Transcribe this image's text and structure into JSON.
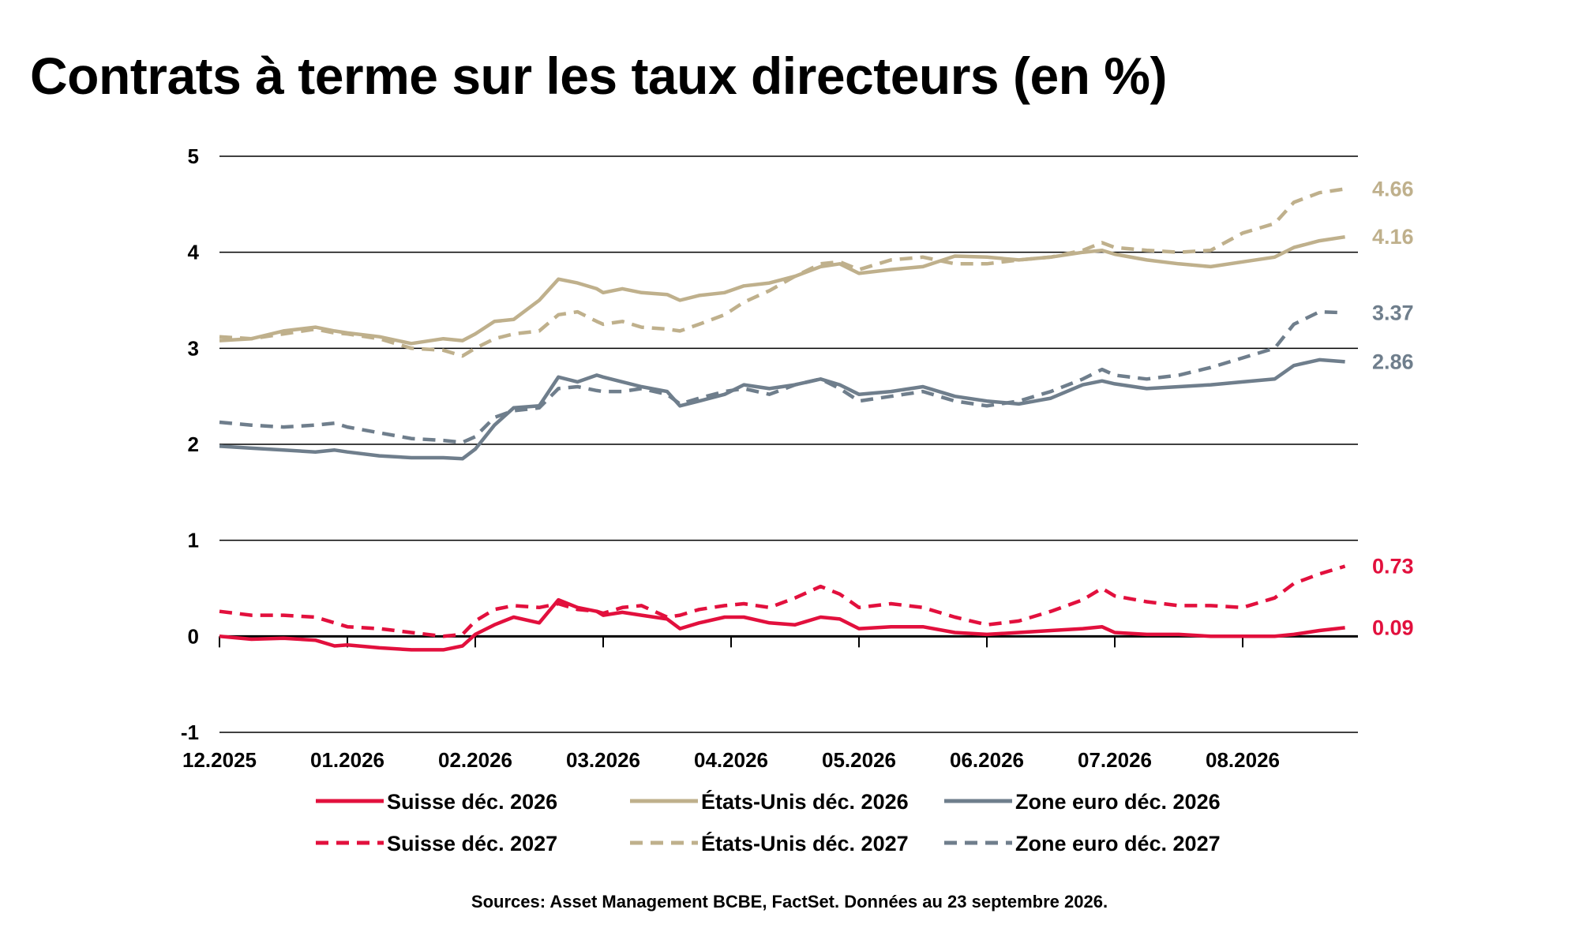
{
  "title": "Contrats à terme sur les taux directeurs (en %)",
  "source_note": "Sources: Asset Management BCBE, FactSet. Données au 23 septembre 2026.",
  "colors": {
    "suisse": "#E2103D",
    "etats_unis": "#BFB08C",
    "zone_euro": "#6F7E8C",
    "grid": "#000000"
  },
  "chart_data": {
    "type": "line",
    "title": "Contrats à terme sur les taux directeurs (en %)",
    "xlabel": "",
    "ylabel": "",
    "ylim": [
      -1,
      5
    ],
    "yticks": [
      -1,
      0,
      1,
      2,
      3,
      4,
      5
    ],
    "grid": "horizontal",
    "legend_position": "bottom",
    "x_start": "12.2025",
    "x_end": "23.09.2026",
    "x_ticks": [
      {
        "label": "12.2025",
        "t": 0
      },
      {
        "label": "01.2026",
        "t": 1
      },
      {
        "label": "02.2026",
        "t": 2
      },
      {
        "label": "03.2026",
        "t": 3
      },
      {
        "label": "04.2026",
        "t": 4
      },
      {
        "label": "05.2026",
        "t": 5
      },
      {
        "label": "06.2026",
        "t": 6
      },
      {
        "label": "07.2026",
        "t": 7
      },
      {
        "label": "08.2026",
        "t": 8
      }
    ],
    "series": [
      {
        "name": "Suisse déc. 2026",
        "color": "#E2103D",
        "dash": "solid",
        "end_label": "0.09",
        "points": [
          [
            0,
            0
          ],
          [
            0.25,
            -0.03
          ],
          [
            0.5,
            -0.02
          ],
          [
            0.75,
            -0.04
          ],
          [
            0.9,
            -0.1
          ],
          [
            1.0,
            -0.09
          ],
          [
            1.25,
            -0.12
          ],
          [
            1.5,
            -0.14
          ],
          [
            1.75,
            -0.14
          ],
          [
            1.9,
            -0.1
          ],
          [
            2.0,
            0.02
          ],
          [
            2.15,
            0.12
          ],
          [
            2.3,
            0.2
          ],
          [
            2.5,
            0.14
          ],
          [
            2.65,
            0.38
          ],
          [
            2.8,
            0.3
          ],
          [
            2.95,
            0.26
          ],
          [
            3.0,
            0.22
          ],
          [
            3.15,
            0.25
          ],
          [
            3.3,
            0.22
          ],
          [
            3.5,
            0.18
          ],
          [
            3.6,
            0.08
          ],
          [
            3.75,
            0.14
          ],
          [
            3.95,
            0.2
          ],
          [
            4.1,
            0.2
          ],
          [
            4.3,
            0.14
          ],
          [
            4.5,
            0.12
          ],
          [
            4.7,
            0.2
          ],
          [
            4.85,
            0.18
          ],
          [
            5.0,
            0.08
          ],
          [
            5.25,
            0.1
          ],
          [
            5.5,
            0.1
          ],
          [
            5.75,
            0.04
          ],
          [
            6.0,
            0.02
          ],
          [
            6.25,
            0.04
          ],
          [
            6.5,
            0.06
          ],
          [
            6.75,
            0.08
          ],
          [
            6.9,
            0.1
          ],
          [
            7.0,
            0.04
          ],
          [
            7.25,
            0.02
          ],
          [
            7.5,
            0.02
          ],
          [
            7.75,
            0.0
          ],
          [
            8.0,
            0.0
          ],
          [
            8.25,
            0.0
          ],
          [
            8.4,
            0.02
          ],
          [
            8.6,
            0.06
          ],
          [
            8.8,
            0.09
          ]
        ]
      },
      {
        "name": "Suisse déc. 2027",
        "color": "#E2103D",
        "dash": "dashed",
        "end_label": "0.73",
        "points": [
          [
            0,
            0.26
          ],
          [
            0.25,
            0.22
          ],
          [
            0.5,
            0.22
          ],
          [
            0.75,
            0.2
          ],
          [
            0.9,
            0.14
          ],
          [
            1.0,
            0.1
          ],
          [
            1.25,
            0.08
          ],
          [
            1.5,
            0.04
          ],
          [
            1.75,
            0.0
          ],
          [
            1.9,
            0.02
          ],
          [
            2.0,
            0.16
          ],
          [
            2.15,
            0.28
          ],
          [
            2.3,
            0.32
          ],
          [
            2.5,
            0.3
          ],
          [
            2.65,
            0.34
          ],
          [
            2.8,
            0.28
          ],
          [
            2.95,
            0.26
          ],
          [
            3.0,
            0.24
          ],
          [
            3.15,
            0.3
          ],
          [
            3.3,
            0.32
          ],
          [
            3.5,
            0.2
          ],
          [
            3.6,
            0.22
          ],
          [
            3.75,
            0.28
          ],
          [
            3.95,
            0.32
          ],
          [
            4.1,
            0.34
          ],
          [
            4.3,
            0.3
          ],
          [
            4.5,
            0.4
          ],
          [
            4.7,
            0.52
          ],
          [
            4.85,
            0.44
          ],
          [
            5.0,
            0.3
          ],
          [
            5.25,
            0.34
          ],
          [
            5.5,
            0.3
          ],
          [
            5.75,
            0.2
          ],
          [
            6.0,
            0.12
          ],
          [
            6.25,
            0.16
          ],
          [
            6.5,
            0.26
          ],
          [
            6.75,
            0.38
          ],
          [
            6.9,
            0.5
          ],
          [
            7.0,
            0.42
          ],
          [
            7.25,
            0.36
          ],
          [
            7.5,
            0.32
          ],
          [
            7.75,
            0.32
          ],
          [
            8.0,
            0.3
          ],
          [
            8.25,
            0.4
          ],
          [
            8.4,
            0.55
          ],
          [
            8.6,
            0.65
          ],
          [
            8.8,
            0.73
          ]
        ]
      },
      {
        "name": "États-Unis déc. 2026",
        "color": "#BFB08C",
        "dash": "solid",
        "end_label": "4.16",
        "points": [
          [
            0,
            3.08
          ],
          [
            0.25,
            3.1
          ],
          [
            0.5,
            3.18
          ],
          [
            0.75,
            3.22
          ],
          [
            0.9,
            3.18
          ],
          [
            1.0,
            3.16
          ],
          [
            1.25,
            3.12
          ],
          [
            1.5,
            3.05
          ],
          [
            1.75,
            3.1
          ],
          [
            1.9,
            3.08
          ],
          [
            2.0,
            3.15
          ],
          [
            2.15,
            3.28
          ],
          [
            2.3,
            3.3
          ],
          [
            2.5,
            3.5
          ],
          [
            2.65,
            3.72
          ],
          [
            2.8,
            3.68
          ],
          [
            2.95,
            3.62
          ],
          [
            3.0,
            3.58
          ],
          [
            3.15,
            3.62
          ],
          [
            3.3,
            3.58
          ],
          [
            3.5,
            3.56
          ],
          [
            3.6,
            3.5
          ],
          [
            3.75,
            3.55
          ],
          [
            3.95,
            3.58
          ],
          [
            4.1,
            3.65
          ],
          [
            4.3,
            3.68
          ],
          [
            4.5,
            3.75
          ],
          [
            4.7,
            3.85
          ],
          [
            4.85,
            3.88
          ],
          [
            5.0,
            3.78
          ],
          [
            5.25,
            3.82
          ],
          [
            5.5,
            3.85
          ],
          [
            5.75,
            3.96
          ],
          [
            6.0,
            3.95
          ],
          [
            6.25,
            3.92
          ],
          [
            6.5,
            3.95
          ],
          [
            6.75,
            4.0
          ],
          [
            6.9,
            4.02
          ],
          [
            7.0,
            3.98
          ],
          [
            7.25,
            3.92
          ],
          [
            7.5,
            3.88
          ],
          [
            7.75,
            3.85
          ],
          [
            8.0,
            3.9
          ],
          [
            8.25,
            3.95
          ],
          [
            8.4,
            4.05
          ],
          [
            8.6,
            4.12
          ],
          [
            8.8,
            4.16
          ]
        ]
      },
      {
        "name": "États-Unis déc. 2027",
        "color": "#BFB08C",
        "dash": "dashed",
        "end_label": "4.66",
        "points": [
          [
            0,
            3.12
          ],
          [
            0.25,
            3.1
          ],
          [
            0.5,
            3.15
          ],
          [
            0.75,
            3.2
          ],
          [
            0.9,
            3.16
          ],
          [
            1.0,
            3.15
          ],
          [
            1.25,
            3.1
          ],
          [
            1.5,
            3.0
          ],
          [
            1.75,
            2.98
          ],
          [
            1.9,
            2.92
          ],
          [
            2.0,
            3.0
          ],
          [
            2.15,
            3.1
          ],
          [
            2.3,
            3.15
          ],
          [
            2.5,
            3.18
          ],
          [
            2.65,
            3.35
          ],
          [
            2.8,
            3.38
          ],
          [
            2.95,
            3.28
          ],
          [
            3.0,
            3.25
          ],
          [
            3.15,
            3.28
          ],
          [
            3.3,
            3.22
          ],
          [
            3.5,
            3.2
          ],
          [
            3.6,
            3.18
          ],
          [
            3.75,
            3.25
          ],
          [
            3.95,
            3.35
          ],
          [
            4.1,
            3.48
          ],
          [
            4.3,
            3.6
          ],
          [
            4.5,
            3.75
          ],
          [
            4.7,
            3.88
          ],
          [
            4.85,
            3.9
          ],
          [
            5.0,
            3.82
          ],
          [
            5.25,
            3.92
          ],
          [
            5.5,
            3.95
          ],
          [
            5.75,
            3.88
          ],
          [
            6.0,
            3.88
          ],
          [
            6.25,
            3.92
          ],
          [
            6.5,
            3.95
          ],
          [
            6.75,
            4.02
          ],
          [
            6.9,
            4.1
          ],
          [
            7.0,
            4.05
          ],
          [
            7.25,
            4.02
          ],
          [
            7.5,
            4.0
          ],
          [
            7.75,
            4.02
          ],
          [
            8.0,
            4.2
          ],
          [
            8.25,
            4.3
          ],
          [
            8.4,
            4.52
          ],
          [
            8.6,
            4.62
          ],
          [
            8.8,
            4.66
          ]
        ]
      },
      {
        "name": "Zone euro déc. 2026",
        "color": "#6F7E8C",
        "dash": "solid",
        "end_label": "2.86",
        "points": [
          [
            0,
            1.98
          ],
          [
            0.25,
            1.96
          ],
          [
            0.5,
            1.94
          ],
          [
            0.75,
            1.92
          ],
          [
            0.9,
            1.94
          ],
          [
            1.0,
            1.92
          ],
          [
            1.25,
            1.88
          ],
          [
            1.5,
            1.86
          ],
          [
            1.75,
            1.86
          ],
          [
            1.9,
            1.85
          ],
          [
            2.0,
            1.95
          ],
          [
            2.15,
            2.2
          ],
          [
            2.3,
            2.38
          ],
          [
            2.5,
            2.4
          ],
          [
            2.65,
            2.7
          ],
          [
            2.8,
            2.65
          ],
          [
            2.95,
            2.72
          ],
          [
            3.0,
            2.7
          ],
          [
            3.15,
            2.65
          ],
          [
            3.3,
            2.6
          ],
          [
            3.5,
            2.55
          ],
          [
            3.6,
            2.4
          ],
          [
            3.75,
            2.45
          ],
          [
            3.95,
            2.52
          ],
          [
            4.1,
            2.62
          ],
          [
            4.3,
            2.58
          ],
          [
            4.5,
            2.62
          ],
          [
            4.7,
            2.68
          ],
          [
            4.85,
            2.62
          ],
          [
            5.0,
            2.52
          ],
          [
            5.25,
            2.55
          ],
          [
            5.5,
            2.6
          ],
          [
            5.75,
            2.5
          ],
          [
            6.0,
            2.45
          ],
          [
            6.25,
            2.42
          ],
          [
            6.5,
            2.48
          ],
          [
            6.75,
            2.62
          ],
          [
            6.9,
            2.66
          ],
          [
            7.0,
            2.63
          ],
          [
            7.25,
            2.58
          ],
          [
            7.5,
            2.6
          ],
          [
            7.75,
            2.62
          ],
          [
            8.0,
            2.65
          ],
          [
            8.25,
            2.68
          ],
          [
            8.4,
            2.82
          ],
          [
            8.6,
            2.88
          ],
          [
            8.8,
            2.86
          ]
        ]
      },
      {
        "name": "Zone euro déc. 2027",
        "color": "#6F7E8C",
        "dash": "dashed",
        "end_label": "3.37",
        "points": [
          [
            0,
            2.23
          ],
          [
            0.25,
            2.2
          ],
          [
            0.5,
            2.18
          ],
          [
            0.75,
            2.2
          ],
          [
            0.9,
            2.22
          ],
          [
            1.0,
            2.18
          ],
          [
            1.25,
            2.12
          ],
          [
            1.5,
            2.06
          ],
          [
            1.75,
            2.04
          ],
          [
            1.9,
            2.02
          ],
          [
            2.0,
            2.08
          ],
          [
            2.15,
            2.28
          ],
          [
            2.3,
            2.35
          ],
          [
            2.5,
            2.38
          ],
          [
            2.65,
            2.58
          ],
          [
            2.8,
            2.6
          ],
          [
            2.95,
            2.56
          ],
          [
            3.0,
            2.55
          ],
          [
            3.15,
            2.55
          ],
          [
            3.3,
            2.58
          ],
          [
            3.5,
            2.52
          ],
          [
            3.6,
            2.42
          ],
          [
            3.75,
            2.48
          ],
          [
            3.95,
            2.55
          ],
          [
            4.1,
            2.58
          ],
          [
            4.3,
            2.52
          ],
          [
            4.5,
            2.62
          ],
          [
            4.7,
            2.68
          ],
          [
            4.85,
            2.58
          ],
          [
            5.0,
            2.45
          ],
          [
            5.25,
            2.5
          ],
          [
            5.5,
            2.55
          ],
          [
            5.75,
            2.45
          ],
          [
            6.0,
            2.4
          ],
          [
            6.25,
            2.45
          ],
          [
            6.5,
            2.55
          ],
          [
            6.75,
            2.68
          ],
          [
            6.9,
            2.78
          ],
          [
            7.0,
            2.72
          ],
          [
            7.25,
            2.68
          ],
          [
            7.5,
            2.72
          ],
          [
            7.75,
            2.8
          ],
          [
            8.0,
            2.9
          ],
          [
            8.25,
            3.0
          ],
          [
            8.4,
            3.25
          ],
          [
            8.6,
            3.38
          ],
          [
            8.8,
            3.37
          ]
        ]
      }
    ]
  }
}
